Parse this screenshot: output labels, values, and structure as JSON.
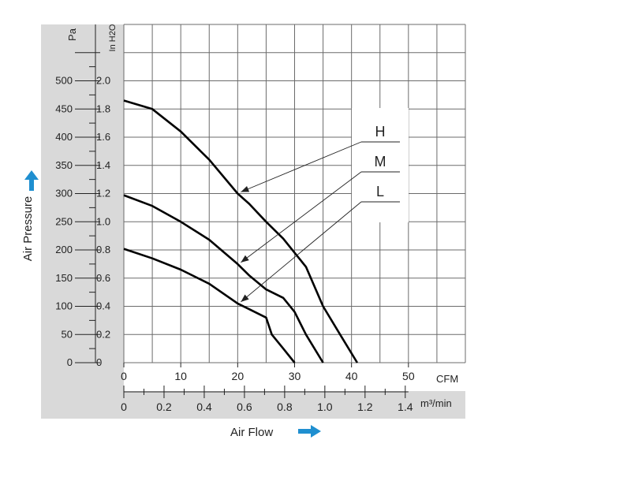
{
  "chart_data": {
    "type": "line",
    "xlabel": "Air Flow",
    "ylabel": "Air Pressure",
    "x_unit_primary": "CFM",
    "x_unit_secondary": "m³/min",
    "y_unit_primary": "Pa",
    "y_unit_secondary": "In H2O",
    "xlim": [
      0,
      60
    ],
    "ylim": [
      0,
      600
    ],
    "x_ticks": [
      0,
      10,
      20,
      30,
      40,
      50
    ],
    "x_ticks_secondary": [
      "0",
      "0.2",
      "0.4",
      "0.6",
      "0.8",
      "1.0",
      "1.2",
      "1.4"
    ],
    "y_ticks": [
      0,
      50,
      100,
      150,
      200,
      250,
      300,
      350,
      400,
      450,
      500
    ],
    "y_ticks_secondary": [
      "0",
      "0.2",
      "0.4",
      "0.6",
      "0.8",
      "1.0",
      "1.2",
      "1.4",
      "1.6",
      "1.8",
      "2.0"
    ],
    "grid": true,
    "legend_position": "right",
    "series": [
      {
        "name": "H",
        "x": [
          0,
          5,
          10,
          15,
          20,
          22,
          25,
          28,
          30,
          32,
          35,
          38,
          41
        ],
        "y": [
          465,
          450,
          410,
          360,
          300,
          282,
          250,
          220,
          195,
          170,
          100,
          50,
          0
        ]
      },
      {
        "name": "M",
        "x": [
          0,
          5,
          10,
          15,
          20,
          22,
          25,
          28,
          30,
          32,
          35
        ],
        "y": [
          297,
          278,
          250,
          218,
          175,
          155,
          130,
          115,
          90,
          50,
          0
        ]
      },
      {
        "name": "L",
        "x": [
          0,
          5,
          10,
          15,
          20,
          22,
          25,
          26,
          28,
          30
        ],
        "y": [
          202,
          185,
          165,
          140,
          105,
          95,
          80,
          50,
          25,
          0
        ]
      }
    ]
  },
  "colors": {
    "frame_gray": "#d9d9d9",
    "grid": "#6b6b6b",
    "curve": "#000000",
    "arrow_accent": "#1f8fd0"
  }
}
